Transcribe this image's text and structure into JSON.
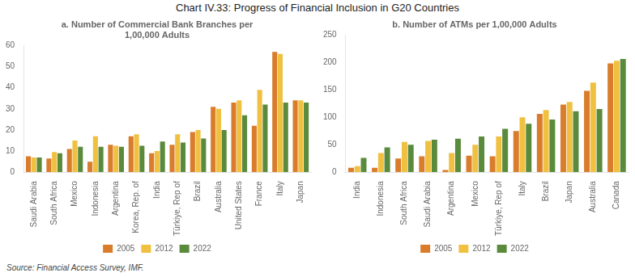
{
  "title": "Chart IV.33: Progress of Financial Inclusion in G20 Countries",
  "annotations": [
    "Source: Financial Access Survey, IMF."
  ],
  "chart_data": [
    {
      "type": "bar",
      "title": "a. Number of Commercial Bank Branches per\n1,00,000 Adults",
      "categories": [
        "Saudi Arabia",
        "South Africa",
        "Mexico",
        "Indonesia",
        "Argentina",
        "Korea, Rep. of",
        "India",
        "Türkiye, Rep of",
        "Brazil",
        "Australia",
        "United States",
        "France",
        "Italy",
        "Japan"
      ],
      "series": [
        {
          "name": "2005",
          "color": "#d97c2b",
          "values": [
            7.5,
            6.5,
            11,
            5,
            13,
            17,
            9,
            13,
            19,
            31,
            33,
            22,
            57,
            34
          ]
        },
        {
          "name": "2012",
          "color": "#f0c040",
          "values": [
            7,
            9.5,
            15,
            17,
            12.5,
            18,
            10,
            18,
            20,
            30,
            34,
            39,
            56,
            34
          ]
        },
        {
          "name": "2022",
          "color": "#5a8a3c",
          "values": [
            7,
            9,
            12,
            12,
            12,
            12.5,
            14.5,
            14,
            16,
            20,
            27,
            32,
            33,
            33
          ]
        }
      ],
      "ylim": [
        0,
        60
      ],
      "yticks": [
        0,
        10,
        20,
        30,
        40,
        50,
        60
      ],
      "grid": false,
      "legend": "bottom"
    },
    {
      "type": "bar",
      "title": "b. Number of ATMs per 1,00,000 Adults",
      "categories": [
        "India",
        "Indonesia",
        "South Africa",
        "Saudi Arabia",
        "Argentina",
        "Mexico",
        "Türkiye, Rep of",
        "Italy",
        "Brazil",
        "Japan",
        "Australia",
        "Canada"
      ],
      "series": [
        {
          "name": "2005",
          "color": "#d97c2b",
          "values": [
            8,
            8,
            25,
            29,
            4,
            30,
            29,
            75,
            106,
            123,
            148,
            198
          ]
        },
        {
          "name": "2012",
          "color": "#f0c040",
          "values": [
            11,
            35,
            55,
            57,
            35,
            50,
            65,
            100,
            113,
            128,
            163,
            203
          ]
        },
        {
          "name": "2022",
          "color": "#5a8a3c",
          "values": [
            26,
            45,
            50,
            59,
            61,
            65,
            79,
            88,
            96,
            111,
            115,
            206
          ]
        }
      ],
      "ylim": [
        0,
        250
      ],
      "yticks": [
        0,
        50,
        100,
        150,
        200,
        250
      ],
      "grid": false,
      "legend": "bottom"
    }
  ]
}
